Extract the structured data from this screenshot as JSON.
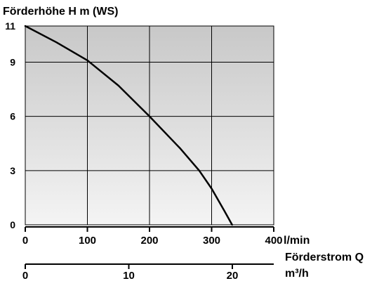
{
  "chart_data": {
    "type": "line",
    "ylabel": "Förderhöhe H m (WS)",
    "x_unit_primary": "l/min",
    "xlabel": "Förderstrom Q",
    "x_unit_secondary": "m³/h",
    "xlim": [
      0,
      400
    ],
    "ylim": [
      0,
      11
    ],
    "x_ticks_primary": [
      0,
      100,
      200,
      300,
      400
    ],
    "x_ticks_secondary": [
      0,
      10,
      20
    ],
    "y_ticks": [
      0,
      3,
      6,
      9,
      11
    ],
    "grid": true,
    "background_gradient": [
      "#c8c8c8",
      "#f4f4f4"
    ],
    "series": [
      {
        "x": [
          0,
          50,
          100,
          150,
          200,
          250,
          280,
          300,
          320,
          333
        ],
        "y": [
          11,
          10.1,
          9.1,
          7.7,
          6.0,
          4.2,
          3.0,
          2.0,
          0.8,
          0
        ],
        "color": "#000000"
      }
    ]
  }
}
